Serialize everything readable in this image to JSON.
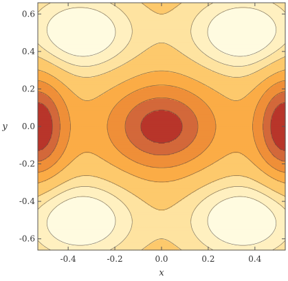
{
  "chart_data": {
    "type": "contour",
    "title": "",
    "xlabel": "x",
    "ylabel": "y",
    "xlim": [
      -0.53,
      0.53
    ],
    "ylim": [
      -0.66,
      0.66
    ],
    "x_ticks": [
      "-0.4",
      "-0.2",
      "0.0",
      "0.2",
      "0.4"
    ],
    "x_tick_values": [
      -0.4,
      -0.2,
      0.0,
      0.2,
      0.4
    ],
    "y_ticks": [
      "0.6",
      "0.4",
      "0.2",
      "0.0",
      "-0.2",
      "-0.4",
      "-0.6"
    ],
    "y_tick_values": [
      0.6,
      0.4,
      0.2,
      0.0,
      -0.2,
      -0.4,
      -0.6
    ],
    "maxima": [
      {
        "x": -0.35,
        "y": 0.5
      },
      {
        "x": 0.35,
        "y": 0.5
      },
      {
        "x": -0.35,
        "y": -0.5
      },
      {
        "x": 0.35,
        "y": -0.5
      }
    ],
    "minima": [
      {
        "x": 0.0,
        "y": 0.0
      },
      {
        "x": -0.53,
        "y": 0.0
      },
      {
        "x": 0.53,
        "y": 0.0
      }
    ],
    "saddle_points": [
      {
        "x": 0.0,
        "y": 0.5
      },
      {
        "x": 0.0,
        "y": -0.5
      }
    ],
    "contour_levels": [
      -0.9,
      -0.65,
      -0.35,
      -0.05,
      0.3,
      0.55,
      0.8
    ],
    "colors": [
      "#b8352a",
      "#d3683a",
      "#ef8f38",
      "#fbac46",
      "#fdc96c",
      "#fee3a0",
      "#fff0c0",
      "#fffbe0"
    ],
    "line_color": "#5b5145",
    "grid": false,
    "legend": "none"
  }
}
